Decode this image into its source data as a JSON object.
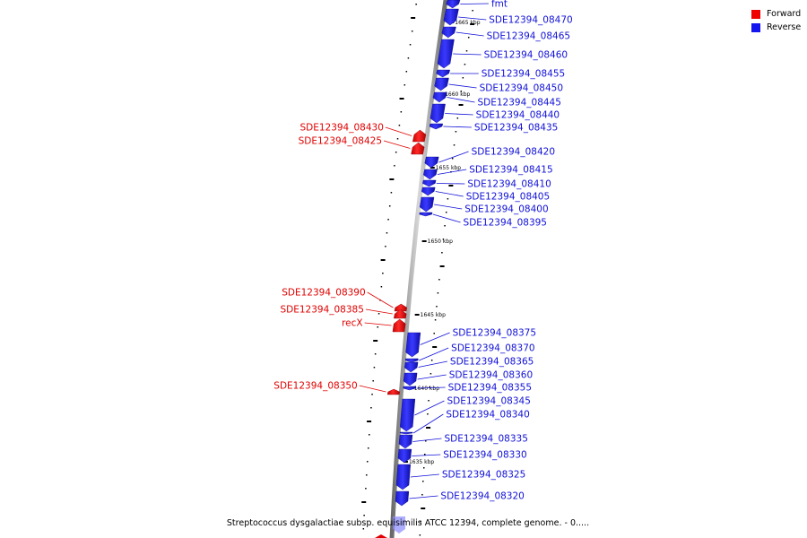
{
  "legend": {
    "forward_label": "Forward",
    "reverse_label": "Reverse",
    "forward_color": "#ee0000",
    "reverse_color": "#1515ee"
  },
  "caption": "Streptococcus dysgalactiae subsp. equisimilis ATCC 12394, complete genome. - 0.....",
  "scale_labels": [
    "1665 kbp",
    "1660 kbp",
    "1655 kbp",
    "1650 kbp",
    "1645 kbp",
    "1640 kbp",
    "1635 kbp"
  ],
  "genes": {
    "reverse": [
      "fmt",
      "SDE12394_08470",
      "SDE12394_08465",
      "SDE12394_08460",
      "SDE12394_08455",
      "SDE12394_08450",
      "SDE12394_08445",
      "SDE12394_08440",
      "SDE12394_08435",
      "SDE12394_08420",
      "SDE12394_08415",
      "SDE12394_08410",
      "SDE12394_08405",
      "SDE12394_08400",
      "SDE12394_08395",
      "SDE12394_08375",
      "SDE12394_08370",
      "SDE12394_08365",
      "SDE12394_08360",
      "SDE12394_08355",
      "SDE12394_08345",
      "SDE12394_08340",
      "SDE12394_08335",
      "SDE12394_08330",
      "SDE12394_08325",
      "SDE12394_08320"
    ],
    "forward": [
      "SDE12394_08430",
      "SDE12394_08425",
      "SDE12394_08390",
      "SDE12394_08385",
      "recX",
      "SDE12394_08350"
    ]
  }
}
